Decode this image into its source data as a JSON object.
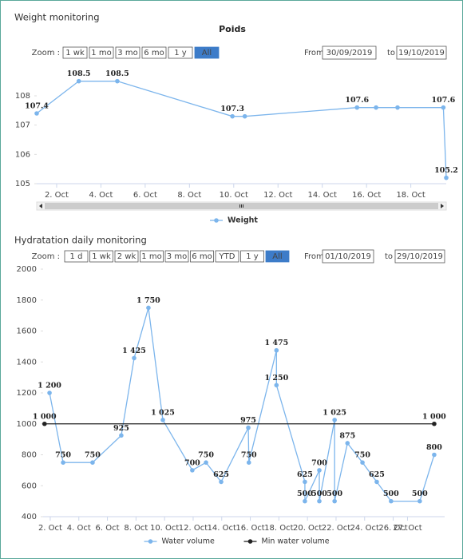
{
  "panels": [
    {
      "heading": "Weight monitoring",
      "zoom_label": "Zoom :",
      "zoom_buttons": [
        {
          "label": "1 wk",
          "state": "link"
        },
        {
          "label": "1 mo",
          "state": "plain"
        },
        {
          "label": "3 mo",
          "state": "plain"
        },
        {
          "label": "6 mo",
          "state": "plain"
        },
        {
          "label": "1 y",
          "state": "plain"
        },
        {
          "label": "All",
          "state": "active"
        }
      ],
      "from_label": "From",
      "from_value": "30/09/2019",
      "to_label": "to",
      "to_value": "19/10/2019"
    },
    {
      "heading": "Hydratation daily monitoring",
      "zoom_label": "Zoom :",
      "zoom_buttons": [
        {
          "label": "1 d",
          "state": "link"
        },
        {
          "label": "1 wk",
          "state": "link"
        },
        {
          "label": "2 wk",
          "state": "link"
        },
        {
          "label": "1 mo",
          "state": "plain"
        },
        {
          "label": "3 mo",
          "state": "plain"
        },
        {
          "label": "6 mo",
          "state": "plain"
        },
        {
          "label": "YTD",
          "state": "link"
        },
        {
          "label": "1 y",
          "state": "plain"
        },
        {
          "label": "All",
          "state": "active"
        }
      ],
      "from_label": "From",
      "from_value": "01/10/2019",
      "to_label": "to",
      "to_value": "29/10/2019"
    }
  ],
  "chart_data": [
    {
      "type": "line",
      "title": "Poids",
      "xlim": [
        1.1,
        19.6
      ],
      "xticks": [
        {
          "value": 2,
          "label": "2. Oct"
        },
        {
          "value": 4,
          "label": "4. Oct"
        },
        {
          "value": 6,
          "label": "6. Oct"
        },
        {
          "value": 8,
          "label": "8. Oct"
        },
        {
          "value": 10,
          "label": "10. Oct"
        },
        {
          "value": 12,
          "label": "12. Oct"
        },
        {
          "value": 14,
          "label": "14. Oct"
        },
        {
          "value": 16,
          "label": "16. Oct"
        },
        {
          "value": 18,
          "label": "18. Oct"
        }
      ],
      "ylim": [
        105,
        108.9
      ],
      "yticks": [
        105,
        106,
        107,
        108
      ],
      "grid": false,
      "series": [
        {
          "name": "Weight",
          "color": "#7cb5ec",
          "x": [
            1.1,
            3.0,
            4.74,
            9.94,
            10.5,
            15.57,
            16.43,
            17.4,
            19.47,
            19.6
          ],
          "values": [
            107.4,
            108.5,
            108.5,
            107.3,
            107.3,
            107.6,
            107.6,
            107.6,
            107.6,
            105.2
          ]
        }
      ]
    },
    {
      "type": "line",
      "xlim": [
        1.5,
        29.6
      ],
      "xticks": [
        {
          "value": 2,
          "label": "2. Oct"
        },
        {
          "value": 4,
          "label": "4. Oct"
        },
        {
          "value": 6,
          "label": "6. Oct"
        },
        {
          "value": 8,
          "label": "8. Oct"
        },
        {
          "value": 10,
          "label": "10. Oct"
        },
        {
          "value": 12,
          "label": "12. Oct"
        },
        {
          "value": 14,
          "label": "14. Oct"
        },
        {
          "value": 16,
          "label": "16. Oct"
        },
        {
          "value": 18,
          "label": "18. Oct"
        },
        {
          "value": 20,
          "label": "20. Oct"
        },
        {
          "value": 22,
          "label": "22. Oct"
        },
        {
          "value": 24,
          "label": "24. Oct"
        },
        {
          "value": 26,
          "label": "26. Oct"
        },
        {
          "value": 27,
          "label": "27. Oct"
        }
      ],
      "ylim": [
        400,
        2000
      ],
      "yticks": [
        400,
        600,
        800,
        1000,
        1200,
        1400,
        1600,
        1800,
        2000
      ],
      "grid": false,
      "series": [
        {
          "name": "Water volume",
          "color": "#7cb5ec",
          "x": [
            1.95,
            2.9,
            4.96,
            6.97,
            7.87,
            8.87,
            9.88,
            11.94,
            12.9,
            13.96,
            15.86,
            15.9,
            17.83,
            17.83,
            19.82,
            19.82,
            20.83,
            20.83,
            21.9,
            21.9,
            22.8,
            23.85,
            24.85,
            25.85,
            27.86,
            28.87
          ],
          "values": [
            1200,
            750,
            750,
            925,
            1425,
            1750,
            1025,
            700,
            750,
            625,
            975,
            750,
            1475,
            1250,
            625,
            500,
            700,
            500,
            1025,
            500,
            875,
            750,
            625,
            500,
            500,
            800
          ],
          "value_labels": [
            "1 200",
            "750",
            "750",
            "925",
            "1 425",
            "1 750",
            "1 025",
            "700",
            "750",
            "625",
            "975",
            "750",
            "1 475",
            "1 250",
            "625",
            "500",
            "700",
            "500",
            "1 025",
            "500",
            "875",
            "750",
            "625",
            "500",
            "500",
            "800"
          ]
        },
        {
          "name": "Min water volume",
          "color": "#222222",
          "x": [
            1.6,
            28.87
          ],
          "values": [
            1000,
            1000
          ],
          "value_labels": [
            "1 000",
            "1 000"
          ]
        }
      ]
    }
  ]
}
